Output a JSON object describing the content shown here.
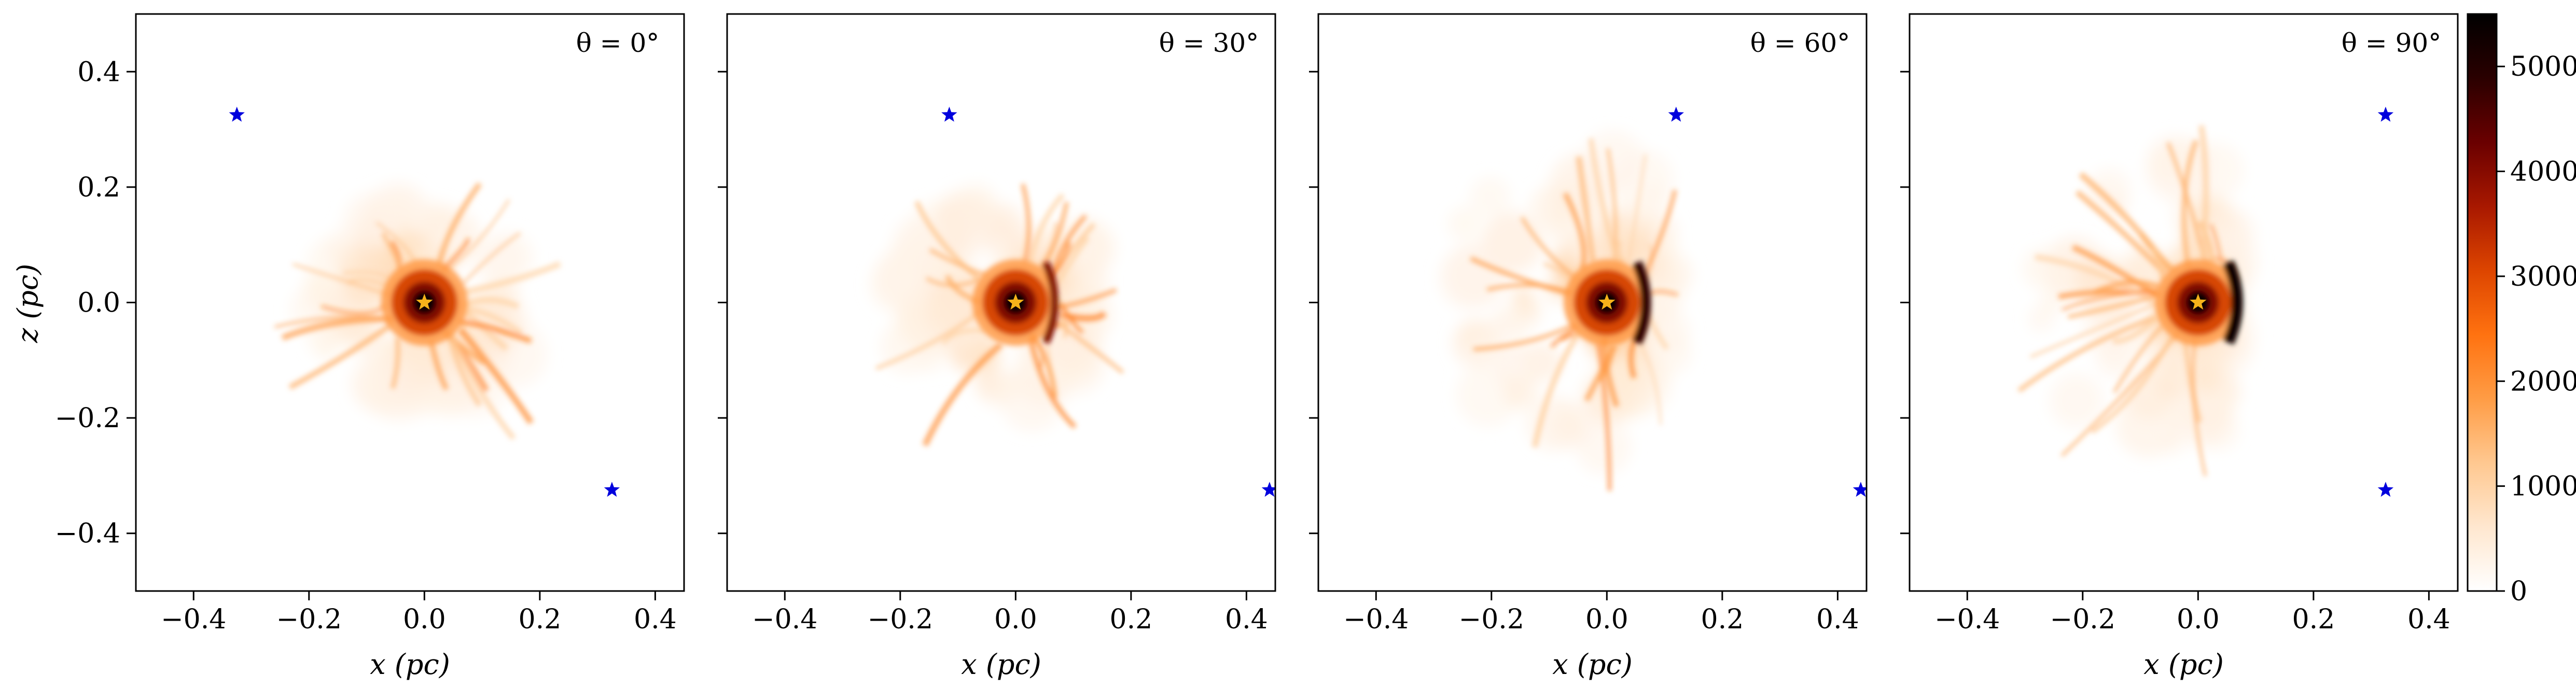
{
  "figure": {
    "ylabel": "z (pc)",
    "colors": {
      "background_star": "#0000dd",
      "central_star": "#f5b21a",
      "cmap": [
        "#ffffff",
        "#ffe7cf",
        "#ffc890",
        "#ff9c45",
        "#ff7210",
        "#dd4500",
        "#a81800",
        "#6a0000",
        "#2a0000",
        "#000000"
      ]
    }
  },
  "chart_data": [
    {
      "type": "heatmap",
      "panel_label": "θ = 0°",
      "xlabel": "x (pc)",
      "ylabel": "z (pc)",
      "xlim": [
        -0.5,
        0.45
      ],
      "ylim": [
        -0.5,
        0.5
      ],
      "xticks": [
        "−0.4",
        "−0.2",
        "0.0",
        "0.2",
        "0.4"
      ],
      "xtick_values": [
        -0.4,
        -0.2,
        0.0,
        0.2,
        0.4
      ],
      "yticks": [
        "−0.4",
        "−0.2",
        "0.0",
        "0.2",
        "0.4"
      ],
      "ytick_values": [
        -0.4,
        -0.2,
        0.0,
        0.2,
        0.4
      ],
      "central_star": {
        "x": 0.0,
        "z": 0.0
      },
      "background_stars": [
        {
          "x": -0.325,
          "z": 0.325
        },
        {
          "x": 0.325,
          "z": -0.325
        }
      ],
      "emission": {
        "center_x": 0.0,
        "center_z": 0.0,
        "dense_shell_radius": 0.06,
        "diffuse_radius": 0.2,
        "asymmetry": 0.0,
        "peak": 4500
      }
    },
    {
      "type": "heatmap",
      "panel_label": "θ = 30°",
      "xlabel": "x (pc)",
      "xlim": [
        -0.5,
        0.45
      ],
      "ylim": [
        -0.5,
        0.5
      ],
      "xticks": [
        "−0.4",
        "−0.2",
        "0.0",
        "0.2",
        "0.4"
      ],
      "xtick_values": [
        -0.4,
        -0.2,
        0.0,
        0.2,
        0.4
      ],
      "ytick_values": [
        -0.4,
        -0.2,
        0.0,
        0.2,
        0.4
      ],
      "central_star": {
        "x": 0.0,
        "z": 0.0
      },
      "background_stars": [
        {
          "x": -0.115,
          "z": 0.325
        },
        {
          "x": 0.44,
          "z": -0.325
        }
      ],
      "emission": {
        "center_x": 0.0,
        "center_z": 0.0,
        "dense_shell_radius": 0.06,
        "diffuse_radius": 0.22,
        "asymmetry": 0.35,
        "peak": 5000
      }
    },
    {
      "type": "heatmap",
      "panel_label": "θ = 60°",
      "xlabel": "x (pc)",
      "xlim": [
        -0.5,
        0.45
      ],
      "ylim": [
        -0.5,
        0.5
      ],
      "xticks": [
        "−0.4",
        "−0.2",
        "0.0",
        "0.2",
        "0.4"
      ],
      "xtick_values": [
        -0.4,
        -0.2,
        0.0,
        0.2,
        0.4
      ],
      "ytick_values": [
        -0.4,
        -0.2,
        0.0,
        0.2,
        0.4
      ],
      "central_star": {
        "x": 0.0,
        "z": 0.0
      },
      "background_stars": [
        {
          "x": 0.12,
          "z": 0.325
        },
        {
          "x": 0.44,
          "z": -0.325
        }
      ],
      "emission": {
        "center_x": 0.0,
        "center_z": 0.0,
        "dense_shell_radius": 0.06,
        "diffuse_radius": 0.3,
        "asymmetry": 0.7,
        "peak": 5400
      }
    },
    {
      "type": "heatmap",
      "panel_label": "θ = 90°",
      "xlabel": "x (pc)",
      "xlim": [
        -0.5,
        0.45
      ],
      "ylim": [
        -0.5,
        0.5
      ],
      "xticks": [
        "−0.4",
        "−0.2",
        "0.0",
        "0.2",
        "0.4"
      ],
      "xtick_values": [
        -0.4,
        -0.2,
        0.0,
        0.2,
        0.4
      ],
      "ytick_values": [
        -0.4,
        -0.2,
        0.0,
        0.2,
        0.4
      ],
      "central_star": {
        "x": 0.0,
        "z": 0.0
      },
      "background_stars": [
        {
          "x": 0.325,
          "z": 0.325
        },
        {
          "x": 0.325,
          "z": -0.325
        }
      ],
      "emission": {
        "center_x": 0.0,
        "center_z": 0.0,
        "dense_shell_radius": 0.06,
        "diffuse_radius": 0.3,
        "asymmetry": 0.9,
        "peak": 5500
      }
    }
  ],
  "colorbar": {
    "range": [
      0,
      5500
    ],
    "ticks": [
      "0",
      "1000",
      "2000",
      "3000",
      "4000",
      "5000"
    ],
    "tick_values": [
      0,
      1000,
      2000,
      3000,
      4000,
      5000
    ]
  }
}
